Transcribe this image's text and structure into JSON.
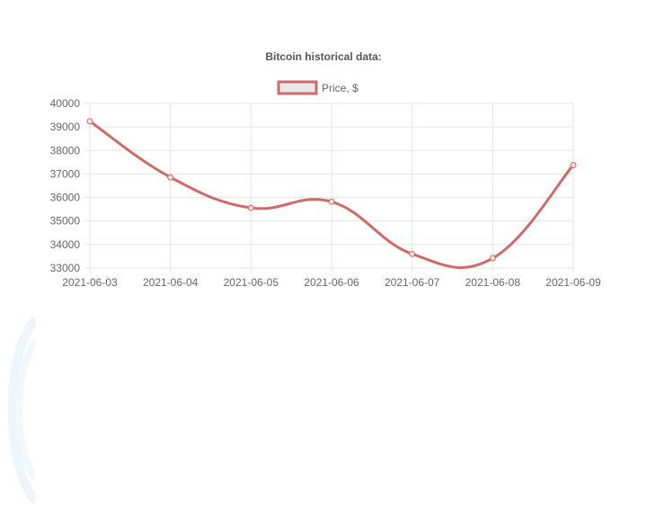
{
  "colors": {
    "line": "#cc6b67",
    "point_fill": "#f5dddd",
    "legend_box_fill": "#e8e8e8",
    "grid": "#e6e6e6",
    "axis_text": "#666666",
    "title_text": "#555555"
  },
  "chart_data": {
    "type": "line",
    "title": "Bitcoin historical data:",
    "xlabel": "",
    "ylabel": "",
    "categories": [
      "2021-06-03",
      "2021-06-04",
      "2021-06-05",
      "2021-06-06",
      "2021-06-07",
      "2021-06-08",
      "2021-06-09"
    ],
    "series": [
      {
        "name": "Price, $",
        "values": [
          39240,
          36860,
          35560,
          35820,
          33600,
          33420,
          37380
        ]
      }
    ],
    "ylim": [
      33000,
      40000
    ],
    "yticks": [
      33000,
      34000,
      35000,
      36000,
      37000,
      38000,
      39000,
      40000
    ],
    "legend_position": "top",
    "grid": true,
    "smoothed": true
  }
}
